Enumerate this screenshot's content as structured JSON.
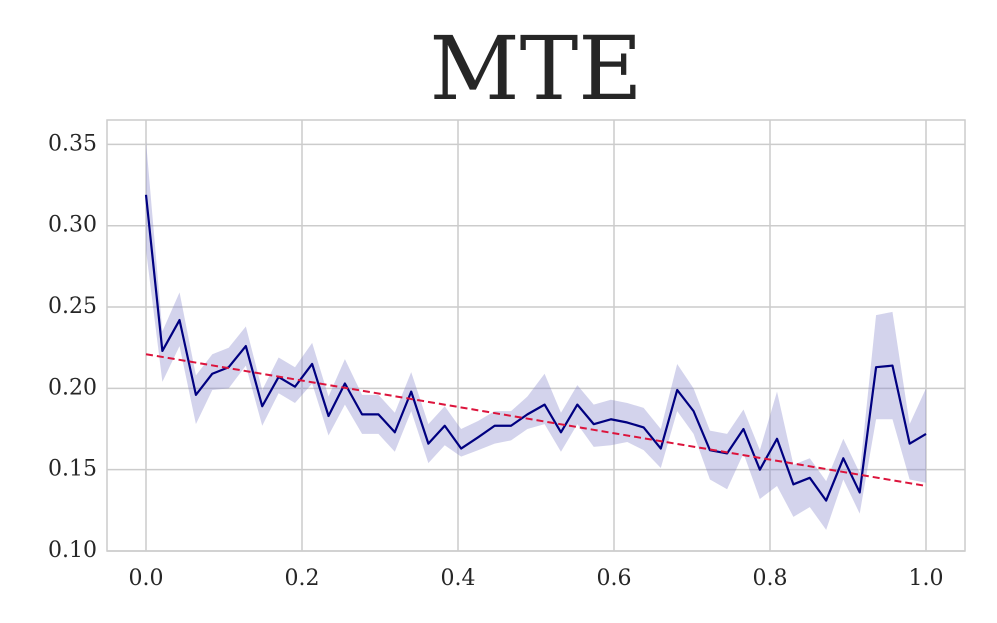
{
  "chart_data": {
    "type": "line",
    "title": "MTE",
    "x": [
      0,
      0.021,
      0.043,
      0.064,
      0.085,
      0.106,
      0.128,
      0.149,
      0.17,
      0.191,
      0.213,
      0.234,
      0.255,
      0.277,
      0.298,
      0.319,
      0.34,
      0.362,
      0.383,
      0.404,
      0.426,
      0.447,
      0.468,
      0.489,
      0.511,
      0.532,
      0.553,
      0.574,
      0.596,
      0.617,
      0.638,
      0.66,
      0.681,
      0.702,
      0.723,
      0.745,
      0.766,
      0.787,
      0.809,
      0.83,
      0.851,
      0.872,
      0.894,
      0.915,
      0.936,
      0.957,
      0.979,
      1
    ],
    "values": [
      0.319,
      0.223,
      0.242,
      0.196,
      0.209,
      0.213,
      0.226,
      0.189,
      0.207,
      0.201,
      0.215,
      0.183,
      0.203,
      0.184,
      0.184,
      0.173,
      0.198,
      0.166,
      0.177,
      0.163,
      0.17,
      0.177,
      0.177,
      0.184,
      0.19,
      0.173,
      0.19,
      0.178,
      0.181,
      0.179,
      0.176,
      0.163,
      0.199,
      0.186,
      0.162,
      0.16,
      0.175,
      0.15,
      0.169,
      0.141,
      0.145,
      0.131,
      0.157,
      0.136,
      0.213,
      0.214,
      0.166,
      0.172
    ],
    "band_upper": [
      0.352,
      0.235,
      0.259,
      0.208,
      0.221,
      0.225,
      0.238,
      0.199,
      0.219,
      0.213,
      0.228,
      0.195,
      0.218,
      0.196,
      0.196,
      0.185,
      0.21,
      0.178,
      0.189,
      0.175,
      0.18,
      0.186,
      0.186,
      0.195,
      0.209,
      0.185,
      0.202,
      0.19,
      0.193,
      0.191,
      0.188,
      0.175,
      0.215,
      0.2,
      0.174,
      0.172,
      0.187,
      0.162,
      0.198,
      0.153,
      0.157,
      0.143,
      0.169,
      0.148,
      0.245,
      0.247,
      0.178,
      0.2
    ],
    "band_lower": [
      0.285,
      0.204,
      0.226,
      0.178,
      0.199,
      0.2,
      0.214,
      0.177,
      0.197,
      0.191,
      0.203,
      0.171,
      0.19,
      0.172,
      0.172,
      0.161,
      0.186,
      0.154,
      0.165,
      0.158,
      0.162,
      0.166,
      0.168,
      0.175,
      0.178,
      0.161,
      0.178,
      0.164,
      0.165,
      0.167,
      0.162,
      0.151,
      0.186,
      0.172,
      0.144,
      0.138,
      0.16,
      0.132,
      0.14,
      0.121,
      0.127,
      0.113,
      0.144,
      0.123,
      0.181,
      0.181,
      0.144,
      0.142
    ],
    "color": "#000080",
    "band_color": "#8080c8",
    "trend": {
      "x": [
        0,
        1
      ],
      "values": [
        0.221,
        0.14
      ],
      "color": "#dc143c"
    },
    "xlim": [
      -0.05,
      1.05
    ],
    "ylim": [
      0.1,
      0.365
    ],
    "xticks": [
      {
        "value": 0,
        "label": "0.0"
      },
      {
        "value": 0.2,
        "label": "0.2"
      },
      {
        "value": 0.4,
        "label": "0.4"
      },
      {
        "value": 0.6,
        "label": "0.6"
      },
      {
        "value": 0.8,
        "label": "0.8"
      },
      {
        "value": 1,
        "label": "1.0"
      }
    ],
    "yticks": [
      {
        "value": 0.1,
        "label": "0.10"
      },
      0.15,
      {
        "value": 0.2,
        "label": "0.20"
      },
      0.25,
      {
        "value": 0.3,
        "label": "0.30"
      },
      0.35
    ],
    "grid": true
  }
}
